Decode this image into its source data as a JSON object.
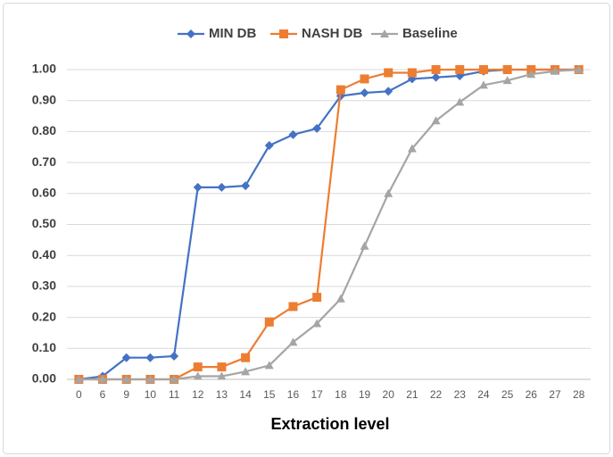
{
  "chart_data": {
    "type": "line",
    "xlabel": "Extraction level",
    "categories": [
      "0",
      "6",
      "9",
      "10",
      "11",
      "12",
      "13",
      "14",
      "15",
      "16",
      "17",
      "18",
      "19",
      "20",
      "21",
      "22",
      "23",
      "24",
      "25",
      "26",
      "27",
      "28"
    ],
    "series": [
      {
        "name": "MIN DB",
        "color": "#4472c4",
        "marker": "diamond",
        "values": [
          0,
          0.01,
          0.07,
          0.07,
          0.075,
          0.62,
          0.62,
          0.625,
          0.755,
          0.79,
          0.81,
          0.915,
          0.925,
          0.93,
          0.97,
          0.975,
          0.98,
          0.995,
          1.0,
          1.0,
          1.0,
          1.0
        ]
      },
      {
        "name": "NASH DB",
        "color": "#ed7d31",
        "marker": "square",
        "values": [
          0,
          0,
          0,
          0,
          0,
          0.04,
          0.04,
          0.07,
          0.185,
          0.235,
          0.265,
          0.935,
          0.97,
          0.99,
          0.99,
          1.0,
          1.0,
          1.0,
          1.0,
          1.0,
          1.0,
          1.0
        ]
      },
      {
        "name": "Baseline",
        "color": "#a5a5a5",
        "marker": "triangle",
        "values": [
          0,
          0,
          0,
          0,
          0,
          0.01,
          0.01,
          0.025,
          0.045,
          0.12,
          0.18,
          0.26,
          0.43,
          0.6,
          0.745,
          0.835,
          0.895,
          0.95,
          0.965,
          0.985,
          0.995,
          1.0
        ]
      }
    ],
    "ylim": [
      0,
      1
    ],
    "yticks": [
      {
        "value": 0,
        "label": "0.00"
      },
      {
        "value": 0.1,
        "label": "0.10"
      },
      {
        "value": 0.2,
        "label": "0.20"
      },
      {
        "value": 0.3,
        "label": "0.30"
      },
      {
        "value": 0.4,
        "label": "0.40"
      },
      {
        "value": 0.5,
        "label": "0.50"
      },
      {
        "value": 0.6,
        "label": "0.60"
      },
      {
        "value": 0.7,
        "label": "0.70"
      },
      {
        "value": 0.8,
        "label": "0.80"
      },
      {
        "value": 0.9,
        "label": "0.90"
      },
      {
        "value": 1,
        "label": "1.00"
      }
    ],
    "grid": true,
    "legend": "top"
  }
}
